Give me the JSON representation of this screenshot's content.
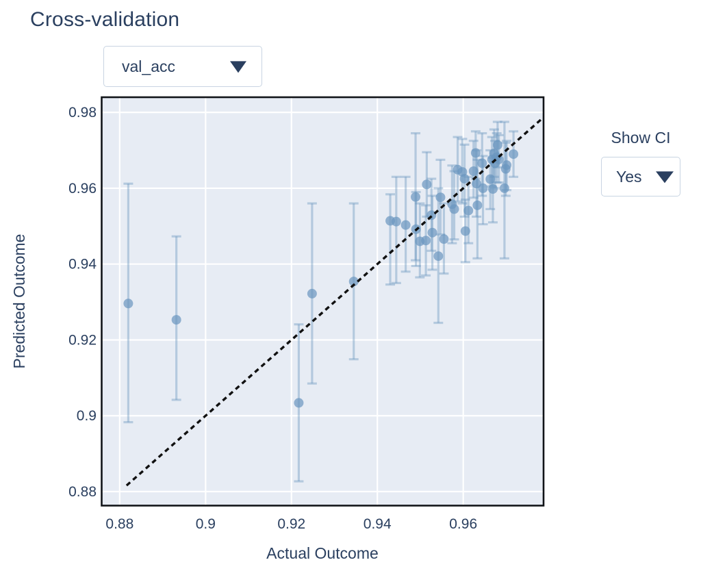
{
  "header": {
    "title": "Cross-validation"
  },
  "controls": {
    "metric": {
      "value": "val_acc"
    },
    "show_ci": {
      "label": "Show CI",
      "value": "Yes"
    }
  },
  "colors": {
    "text": "#2a3f5f",
    "plot_bg": "#e7ecf4",
    "grid": "#ffffff",
    "frame": "#111418",
    "marker": "rgba(106,149,191,0.70)",
    "error_bar": "rgba(106,149,191,0.40)",
    "reference_line": "#111111",
    "dropdown_border": "#c8d4e2"
  },
  "chart_data": {
    "type": "scatter",
    "title": "Cross-validation",
    "xlabel": "Actual Outcome",
    "ylabel": "Predicted Outcome",
    "x_range": [
      0.8758,
      0.9787
    ],
    "y_range": [
      0.8763,
      0.984
    ],
    "x_ticks": [
      0.88,
      0.9,
      0.92,
      0.94,
      0.96
    ],
    "x_tick_labels": [
      "0.88",
      "0.9",
      "0.92",
      "0.94",
      "0.96"
    ],
    "y_ticks": [
      0.88,
      0.9,
      0.92,
      0.94,
      0.96,
      0.98
    ],
    "y_tick_labels": [
      "0.88",
      "0.9",
      "0.92",
      "0.94",
      "0.96",
      "0.98"
    ],
    "grid": true,
    "legend": false,
    "reference_line": {
      "kind": "y=x",
      "style": "dashed",
      "span": [
        0.8816,
        0.9781
      ]
    },
    "error_bars": "ci",
    "points": [
      {
        "x": 0.882,
        "y": 0.9296,
        "ci": [
          0.8983,
          0.9612
        ]
      },
      {
        "x": 0.8932,
        "y": 0.9253,
        "ci": [
          0.9042,
          0.9473
        ]
      },
      {
        "x": 0.9217,
        "y": 0.9034,
        "ci": [
          0.8827,
          0.9241
        ]
      },
      {
        "x": 0.9248,
        "y": 0.9322,
        "ci": [
          0.9085,
          0.956
        ]
      },
      {
        "x": 0.9345,
        "y": 0.9354,
        "ci": [
          0.9149,
          0.956
        ]
      },
      {
        "x": 0.943,
        "y": 0.9514,
        "ci": [
          0.9346,
          0.9584
        ]
      },
      {
        "x": 0.9444,
        "y": 0.9512,
        "ci": [
          0.935,
          0.963
        ]
      },
      {
        "x": 0.9466,
        "y": 0.9503,
        "ci": [
          0.938,
          0.963
        ]
      },
      {
        "x": 0.9489,
        "y": 0.9577,
        "ci": [
          0.941,
          0.9745
        ]
      },
      {
        "x": 0.949,
        "y": 0.9492,
        "ci": [
          0.9395,
          0.959
        ]
      },
      {
        "x": 0.9499,
        "y": 0.946,
        "ci": [
          0.9365,
          0.956
        ]
      },
      {
        "x": 0.9513,
        "y": 0.9462,
        "ci": [
          0.937,
          0.9555
        ]
      },
      {
        "x": 0.9515,
        "y": 0.961,
        "ci": [
          0.9525,
          0.9695
        ]
      },
      {
        "x": 0.9526,
        "y": 0.9529,
        "ci": [
          0.9435,
          0.9625
        ]
      },
      {
        "x": 0.9528,
        "y": 0.9483,
        "ci": [
          0.9385,
          0.958
        ]
      },
      {
        "x": 0.9542,
        "y": 0.9421,
        "ci": [
          0.9245,
          0.96
        ]
      },
      {
        "x": 0.9547,
        "y": 0.9576,
        "ci": [
          0.9478,
          0.9675
        ]
      },
      {
        "x": 0.9555,
        "y": 0.9466,
        "ci": [
          0.9375,
          0.956
        ]
      },
      {
        "x": 0.9574,
        "y": 0.9558,
        "ci": [
          0.9455,
          0.966
        ]
      },
      {
        "x": 0.9579,
        "y": 0.9545,
        "ci": [
          0.9465,
          0.9645
        ]
      },
      {
        "x": 0.9587,
        "y": 0.9649,
        "ci": [
          0.9565,
          0.9735
        ]
      },
      {
        "x": 0.9598,
        "y": 0.9643,
        "ci": [
          0.956,
          0.973
        ]
      },
      {
        "x": 0.9603,
        "y": 0.9625,
        "ci": [
          0.9525,
          0.9715
        ]
      },
      {
        "x": 0.9605,
        "y": 0.9487,
        "ci": [
          0.9405,
          0.957
        ]
      },
      {
        "x": 0.9612,
        "y": 0.9541,
        "ci": [
          0.9455,
          0.963
        ]
      },
      {
        "x": 0.9624,
        "y": 0.9645,
        "ci": [
          0.9575,
          0.9725
        ]
      },
      {
        "x": 0.9629,
        "y": 0.9693,
        "ci": [
          0.9625,
          0.975
        ]
      },
      {
        "x": 0.9631,
        "y": 0.9612,
        "ci": [
          0.9525,
          0.97
        ]
      },
      {
        "x": 0.9633,
        "y": 0.9555,
        "ci": [
          0.9415,
          0.9675
        ]
      },
      {
        "x": 0.9644,
        "y": 0.9666,
        "ci": [
          0.958,
          0.9745
        ]
      },
      {
        "x": 0.9646,
        "y": 0.96,
        "ci": [
          0.9505,
          0.9685
        ]
      },
      {
        "x": 0.9663,
        "y": 0.9624,
        "ci": [
          0.9545,
          0.97
        ]
      },
      {
        "x": 0.9667,
        "y": 0.9676,
        "ci": [
          0.9605,
          0.9735
        ]
      },
      {
        "x": 0.9669,
        "y": 0.9598,
        "ci": [
          0.951,
          0.968
        ]
      },
      {
        "x": 0.9672,
        "y": 0.9692,
        "ci": [
          0.963,
          0.9755
        ]
      },
      {
        "x": 0.9674,
        "y": 0.9666,
        "ci": [
          0.96,
          0.9725
        ]
      },
      {
        "x": 0.9678,
        "y": 0.9682,
        "ci": [
          0.9615,
          0.9745
        ]
      },
      {
        "x": 0.968,
        "y": 0.9714,
        "ci": [
          0.9655,
          0.9775
        ]
      },
      {
        "x": 0.9683,
        "y": 0.9676,
        "ci": [
          0.9615,
          0.974
        ]
      },
      {
        "x": 0.9696,
        "y": 0.96,
        "ci": [
          0.9415,
          0.9775
        ]
      },
      {
        "x": 0.9699,
        "y": 0.9651,
        "ci": [
          0.958,
          0.972
        ]
      },
      {
        "x": 0.9701,
        "y": 0.9661,
        "ci": [
          0.9595,
          0.9725
        ]
      },
      {
        "x": 0.9717,
        "y": 0.969,
        "ci": [
          0.963,
          0.975
        ]
      }
    ]
  }
}
